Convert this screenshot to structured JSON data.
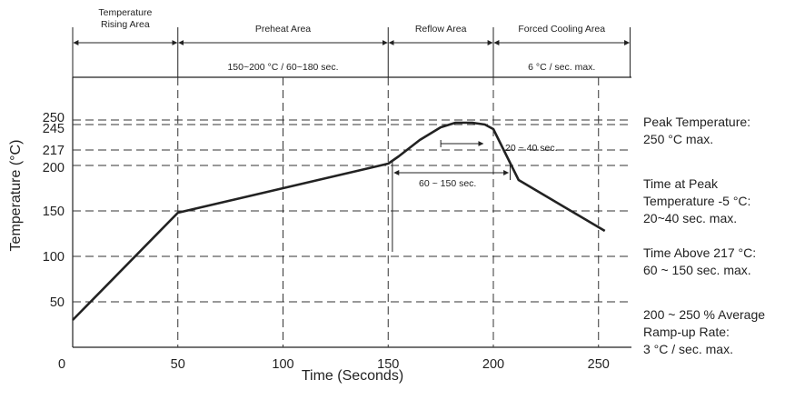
{
  "chart_data": {
    "type": "line",
    "xlabel": "Time (Seconds)",
    "ylabel": "Temperature (°C)",
    "xlim": [
      0,
      265
    ],
    "ylim": [
      0,
      275
    ],
    "x_ticks": [
      0,
      50,
      100,
      150,
      200,
      250
    ],
    "y_ticks": [
      50,
      100,
      150,
      200,
      217,
      245,
      250
    ],
    "grid": true,
    "series": [
      {
        "x": [
          0,
          50,
          150,
          155,
          165,
          175,
          182,
          190,
          196,
          200,
          212,
          253
        ],
        "y": [
          30,
          148,
          202,
          210,
          228,
          242,
          247,
          247,
          245,
          240,
          184,
          128
        ]
      }
    ],
    "zones": [
      {
        "label": "Temperature Rising Area",
        "line1": "Temperature",
        "line2": "Rising Area",
        "x_start": 0,
        "x_end": 50,
        "note": ""
      },
      {
        "label": "Preheat Area",
        "x_start": 50,
        "x_end": 150,
        "note": "150~200 °C / 60~180 sec."
      },
      {
        "label": "Reflow Area",
        "x_start": 150,
        "x_end": 200,
        "note": ""
      },
      {
        "label": "Forced Cooling Area",
        "x_start": 200,
        "x_end": 265,
        "note": "6 °C / sec. max."
      }
    ],
    "annotations": [
      {
        "label": "20 ~ 40 sec.",
        "x_start": 175,
        "x_end": 196,
        "y": 245
      },
      {
        "label": "60 ~ 150 sec.",
        "x_start": 152,
        "x_end": 208,
        "y": 217
      }
    ],
    "side_notes": [
      {
        "lines": [
          "Peak Temperature:",
          "250 °C max."
        ]
      },
      {
        "lines": [
          "Time at Peak",
          "Temperature -5 °C:",
          "20~40 sec. max."
        ]
      },
      {
        "lines": [
          "Time Above 217 °C:",
          "60 ~ 150 sec. max."
        ]
      },
      {
        "lines": [
          "200 ~ 250 % Average",
          "Ramp-up Rate:",
          "3 °C / sec. max."
        ]
      }
    ],
    "colors": {
      "line": "#222222",
      "grid": "#333333",
      "text": "#222222"
    }
  }
}
